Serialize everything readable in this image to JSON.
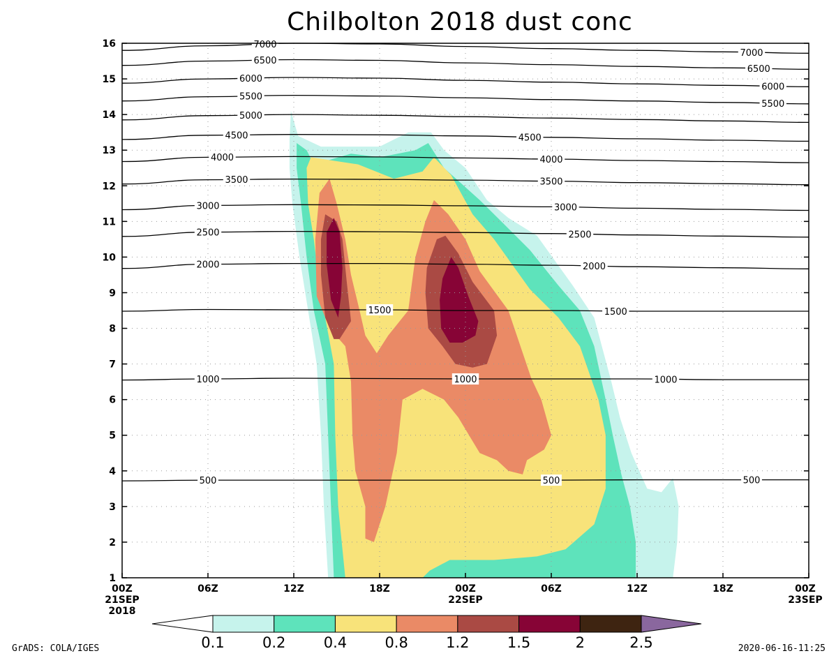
{
  "chart_data": {
    "type": "contour",
    "title": "Chilbolton 2018  dust conc",
    "x": {
      "range_hours": [
        0,
        48
      ],
      "ticks": [
        {
          "h": 0,
          "label": "00Z",
          "label2": "21SEP",
          "label3": "2018"
        },
        {
          "h": 6,
          "label": "06Z"
        },
        {
          "h": 12,
          "label": "12Z"
        },
        {
          "h": 18,
          "label": "18Z"
        },
        {
          "h": 24,
          "label": "00Z",
          "label2": "22SEP"
        },
        {
          "h": 30,
          "label": "06Z"
        },
        {
          "h": 36,
          "label": "12Z"
        },
        {
          "h": 42,
          "label": "18Z"
        },
        {
          "h": 48,
          "label": "00Z",
          "label2": "23SEP"
        }
      ]
    },
    "y": {
      "range": [
        1,
        16
      ],
      "ticks": [
        1,
        2,
        3,
        4,
        5,
        6,
        7,
        8,
        9,
        10,
        11,
        12,
        13,
        14,
        15,
        16
      ],
      "grid": true
    },
    "fill_levels": [
      0.1,
      0.2,
      0.4,
      0.8,
      1.2,
      1.5,
      2,
      2.5
    ],
    "fill_colors": [
      "#c6f3ec",
      "#5ee3bb",
      "#f8e37a",
      "#ea8a66",
      "#aa4a44",
      "#870436",
      "#3e2411",
      "#8a679e"
    ],
    "fill_regions": [
      {
        "level": 0.1,
        "points": [
          [
            14.4,
            1
          ],
          [
            14.1,
            3
          ],
          [
            13.9,
            5
          ],
          [
            13.6,
            7
          ],
          [
            13.0,
            8.5
          ],
          [
            12.4,
            10
          ],
          [
            11.9,
            11.5
          ],
          [
            11.7,
            12.5
          ],
          [
            11.7,
            13.3
          ],
          [
            11.8,
            14.1
          ],
          [
            12.3,
            13.4
          ],
          [
            13.9,
            13.1
          ],
          [
            18.0,
            13.1
          ],
          [
            20.0,
            13.5
          ],
          [
            21.6,
            13.5
          ],
          [
            22.5,
            13.0
          ],
          [
            24.0,
            12.5
          ],
          [
            25.5,
            11.6
          ],
          [
            27.0,
            11.1
          ],
          [
            29.0,
            10.6
          ],
          [
            31.5,
            9.2
          ],
          [
            33.0,
            8.3
          ],
          [
            34.2,
            6.5
          ],
          [
            34.8,
            5.5
          ],
          [
            35.6,
            4.5
          ],
          [
            36.7,
            3.5
          ],
          [
            37.7,
            3.4
          ],
          [
            38.5,
            3.8
          ],
          [
            38.9,
            3.0
          ],
          [
            38.8,
            2.0
          ],
          [
            38.5,
            1
          ]
        ]
      },
      {
        "level": 0.2,
        "points": [
          [
            14.8,
            1
          ],
          [
            14.6,
            3
          ],
          [
            14.4,
            5
          ],
          [
            14.2,
            7
          ],
          [
            13.4,
            8.5
          ],
          [
            12.9,
            10
          ],
          [
            12.5,
            11.5
          ],
          [
            12.2,
            12.5
          ],
          [
            12.2,
            13.2
          ],
          [
            12.9,
            13.0
          ],
          [
            13.4,
            12.6
          ],
          [
            16.0,
            12.9
          ],
          [
            18.0,
            12.8
          ],
          [
            20.5,
            13.0
          ],
          [
            21.4,
            13.2
          ],
          [
            22.5,
            12.5
          ],
          [
            25.0,
            11.6
          ],
          [
            26.5,
            11.0
          ],
          [
            28.5,
            10.2
          ],
          [
            30.5,
            9.2
          ],
          [
            32.0,
            8.5
          ],
          [
            33.0,
            7.5
          ],
          [
            33.8,
            6.0
          ],
          [
            34.3,
            5.0
          ],
          [
            34.9,
            3.9
          ],
          [
            35.5,
            3.0
          ],
          [
            35.9,
            2.0
          ],
          [
            35.9,
            1
          ]
        ]
      },
      {
        "level": 0.4,
        "points": [
          [
            15.6,
            1
          ],
          [
            15.1,
            3
          ],
          [
            14.9,
            5
          ],
          [
            14.8,
            7
          ],
          [
            14.1,
            8.5
          ],
          [
            13.7,
            9.5
          ],
          [
            13.4,
            10.5
          ],
          [
            13.0,
            11.5
          ],
          [
            12.9,
            12.5
          ],
          [
            13.2,
            12.8
          ],
          [
            16.5,
            12.6
          ],
          [
            19.0,
            12.2
          ],
          [
            21.0,
            12.4
          ],
          [
            21.8,
            12.8
          ],
          [
            23.0,
            12.3
          ],
          [
            24.5,
            11.2
          ],
          [
            26.0,
            10.5
          ],
          [
            28.5,
            9.1
          ],
          [
            30.5,
            8.3
          ],
          [
            32.0,
            7.5
          ],
          [
            33.3,
            6.0
          ],
          [
            33.8,
            5.0
          ],
          [
            33.8,
            3.5
          ],
          [
            33.0,
            2.5
          ],
          [
            31.0,
            1.8
          ],
          [
            29.0,
            1.6
          ],
          [
            26.0,
            1.5
          ],
          [
            22.9,
            1.5
          ],
          [
            21.5,
            1.2
          ],
          [
            21.0,
            1
          ]
        ]
      },
      {
        "level": 0.8,
        "points": [
          [
            17.0,
            2.1
          ],
          [
            17.0,
            3.0
          ],
          [
            16.3,
            4.0
          ],
          [
            16.1,
            5.0
          ],
          [
            16.0,
            6.5
          ],
          [
            15.6,
            7.5
          ],
          [
            14.5,
            8.0
          ],
          [
            13.6,
            8.9
          ],
          [
            13.5,
            10.5
          ],
          [
            13.8,
            11.8
          ],
          [
            14.5,
            12.2
          ],
          [
            15.0,
            11.5
          ],
          [
            15.6,
            10.5
          ],
          [
            16.0,
            9.5
          ],
          [
            16.6,
            8.5
          ],
          [
            17.0,
            7.8
          ],
          [
            17.8,
            7.3
          ],
          [
            18.6,
            7.8
          ],
          [
            20.0,
            8.5
          ],
          [
            20.5,
            10.0
          ],
          [
            21.2,
            11.0
          ],
          [
            21.8,
            11.6
          ],
          [
            22.8,
            11.2
          ],
          [
            24.0,
            10.5
          ],
          [
            25.0,
            9.6
          ],
          [
            27.0,
            8.5
          ],
          [
            28.6,
            6.6
          ],
          [
            29.3,
            6.0
          ],
          [
            30.0,
            5.0
          ],
          [
            29.5,
            4.6
          ],
          [
            28.3,
            4.3
          ],
          [
            28.0,
            3.9
          ],
          [
            27.0,
            4.0
          ],
          [
            26.2,
            4.3
          ],
          [
            25.0,
            4.5
          ],
          [
            23.5,
            5.5
          ],
          [
            22.5,
            6.0
          ],
          [
            21.0,
            6.3
          ],
          [
            19.6,
            6.0
          ],
          [
            19.2,
            4.5
          ],
          [
            18.4,
            3.0
          ],
          [
            17.6,
            2.0
          ]
        ]
      },
      {
        "level": 1.2,
        "points": [
          [
            14.8,
            7.7
          ],
          [
            14.2,
            8.3
          ],
          [
            13.9,
            9.5
          ],
          [
            13.9,
            10.5
          ],
          [
            14.2,
            11.2
          ],
          [
            15.0,
            11.0
          ],
          [
            15.4,
            10.5
          ],
          [
            15.7,
            9.3
          ],
          [
            16.0,
            8.2
          ],
          [
            15.2,
            7.7
          ]
        ]
      },
      {
        "level": 1.2,
        "points": [
          [
            23.3,
            7.0
          ],
          [
            22.4,
            7.5
          ],
          [
            21.4,
            8.0
          ],
          [
            21.2,
            9.0
          ],
          [
            21.3,
            9.7
          ],
          [
            22.0,
            10.5
          ],
          [
            22.6,
            10.6
          ],
          [
            23.5,
            10.1
          ],
          [
            24.5,
            9.3
          ],
          [
            26.0,
            8.5
          ],
          [
            26.2,
            7.8
          ],
          [
            25.5,
            7.0
          ],
          [
            24.5,
            6.9
          ]
        ]
      },
      {
        "level": 1.5,
        "points": [
          [
            15.1,
            8.3
          ],
          [
            14.6,
            8.8
          ],
          [
            14.3,
            9.8
          ],
          [
            14.3,
            10.7
          ],
          [
            14.8,
            11.1
          ],
          [
            15.2,
            10.7
          ],
          [
            15.4,
            9.7
          ],
          [
            15.3,
            8.9
          ]
        ]
      },
      {
        "level": 1.5,
        "points": [
          [
            22.9,
            7.6
          ],
          [
            22.3,
            8.0
          ],
          [
            22.2,
            8.8
          ],
          [
            22.4,
            9.4
          ],
          [
            23.0,
            10.0
          ],
          [
            23.5,
            9.7
          ],
          [
            24.2,
            8.9
          ],
          [
            24.9,
            8.2
          ],
          [
            24.7,
            7.8
          ],
          [
            23.8,
            7.6
          ]
        ]
      }
    ],
    "contour_lines": [
      {
        "value": 500,
        "label": "500",
        "y": [
          3.72,
          3.74,
          3.74,
          3.74,
          3.74,
          3.74,
          3.75,
          3.75,
          3.75
        ]
      },
      {
        "value": 1000,
        "label": "1000",
        "y": [
          6.55,
          6.58,
          6.6,
          6.59,
          6.58,
          6.58,
          6.58,
          6.56,
          6.56
        ]
      },
      {
        "value": 1500,
        "label": "1500",
        "y": [
          8.48,
          8.53,
          8.52,
          8.52,
          8.5,
          8.5,
          8.48,
          8.48,
          8.48
        ]
      },
      {
        "value": 2000,
        "label": "2000",
        "y": [
          9.68,
          9.8,
          9.82,
          9.82,
          9.8,
          9.77,
          9.73,
          9.7,
          9.67
        ]
      },
      {
        "value": 2500,
        "label": "2500",
        "y": [
          10.58,
          10.7,
          10.72,
          10.71,
          10.69,
          10.66,
          10.62,
          10.59,
          10.56
        ]
      },
      {
        "value": 3000,
        "label": "3000",
        "y": [
          11.33,
          11.45,
          11.47,
          11.46,
          11.44,
          11.41,
          11.37,
          11.34,
          11.31
        ]
      },
      {
        "value": 3500,
        "label": "3500",
        "y": [
          12.05,
          12.17,
          12.19,
          12.18,
          12.16,
          12.13,
          12.09,
          12.06,
          12.03
        ]
      },
      {
        "value": 4000,
        "label": "4000",
        "y": [
          12.68,
          12.8,
          12.82,
          12.81,
          12.78,
          12.75,
          12.71,
          12.68,
          12.65
        ]
      },
      {
        "value": 4500,
        "label": "4500",
        "y": [
          13.3,
          13.42,
          13.44,
          13.43,
          13.4,
          13.36,
          13.32,
          13.28,
          13.25
        ]
      },
      {
        "value": 5000,
        "label": "5000",
        "y": [
          13.85,
          13.97,
          14.0,
          13.98,
          13.94,
          13.9,
          13.86,
          13.82,
          13.78
        ]
      },
      {
        "value": 5500,
        "label": "5500",
        "y": [
          14.38,
          14.5,
          14.54,
          14.52,
          14.47,
          14.42,
          14.38,
          14.34,
          14.3
        ]
      },
      {
        "value": 6000,
        "label": "6000",
        "y": [
          14.88,
          15.0,
          15.04,
          15.02,
          14.96,
          14.91,
          14.86,
          14.82,
          14.78
        ]
      },
      {
        "value": 6500,
        "label": "6500",
        "y": [
          15.38,
          15.5,
          15.54,
          15.52,
          15.45,
          15.4,
          15.35,
          15.31,
          15.27
        ]
      },
      {
        "value": 7000,
        "label": "7000",
        "y": [
          15.8,
          15.93,
          16.0,
          15.98,
          15.91,
          15.85,
          15.8,
          15.76,
          15.72
        ]
      }
    ],
    "contour_label_positions": [
      {
        "value": 500,
        "h": [
          6,
          30,
          44
        ]
      },
      {
        "value": 1000,
        "h": [
          6,
          24,
          38
        ]
      },
      {
        "value": 1500,
        "h": [
          18,
          34.5
        ]
      },
      {
        "value": 2000,
        "h": [
          6,
          33
        ]
      },
      {
        "value": 2500,
        "h": [
          6,
          32
        ]
      },
      {
        "value": 3000,
        "h": [
          6,
          31
        ]
      },
      {
        "value": 3500,
        "h": [
          8,
          30
        ]
      },
      {
        "value": 4000,
        "h": [
          7,
          30
        ]
      },
      {
        "value": 4500,
        "h": [
          8,
          28.5
        ]
      },
      {
        "value": 5000,
        "h": [
          9
        ]
      },
      {
        "value": 5500,
        "h": [
          9,
          45.5
        ]
      },
      {
        "value": 6000,
        "h": [
          9,
          45.5
        ]
      },
      {
        "value": 6500,
        "h": [
          10,
          44.5
        ]
      },
      {
        "value": 7000,
        "h": [
          10,
          44
        ]
      }
    ],
    "colorbar": {
      "labels": [
        "0.1",
        "0.2",
        "0.4",
        "0.8",
        "1.2",
        "1.5",
        "2",
        "2.5"
      ]
    }
  },
  "footer": {
    "left": "GrADS: COLA/IGES",
    "right": "2020-06-16-11:25"
  }
}
